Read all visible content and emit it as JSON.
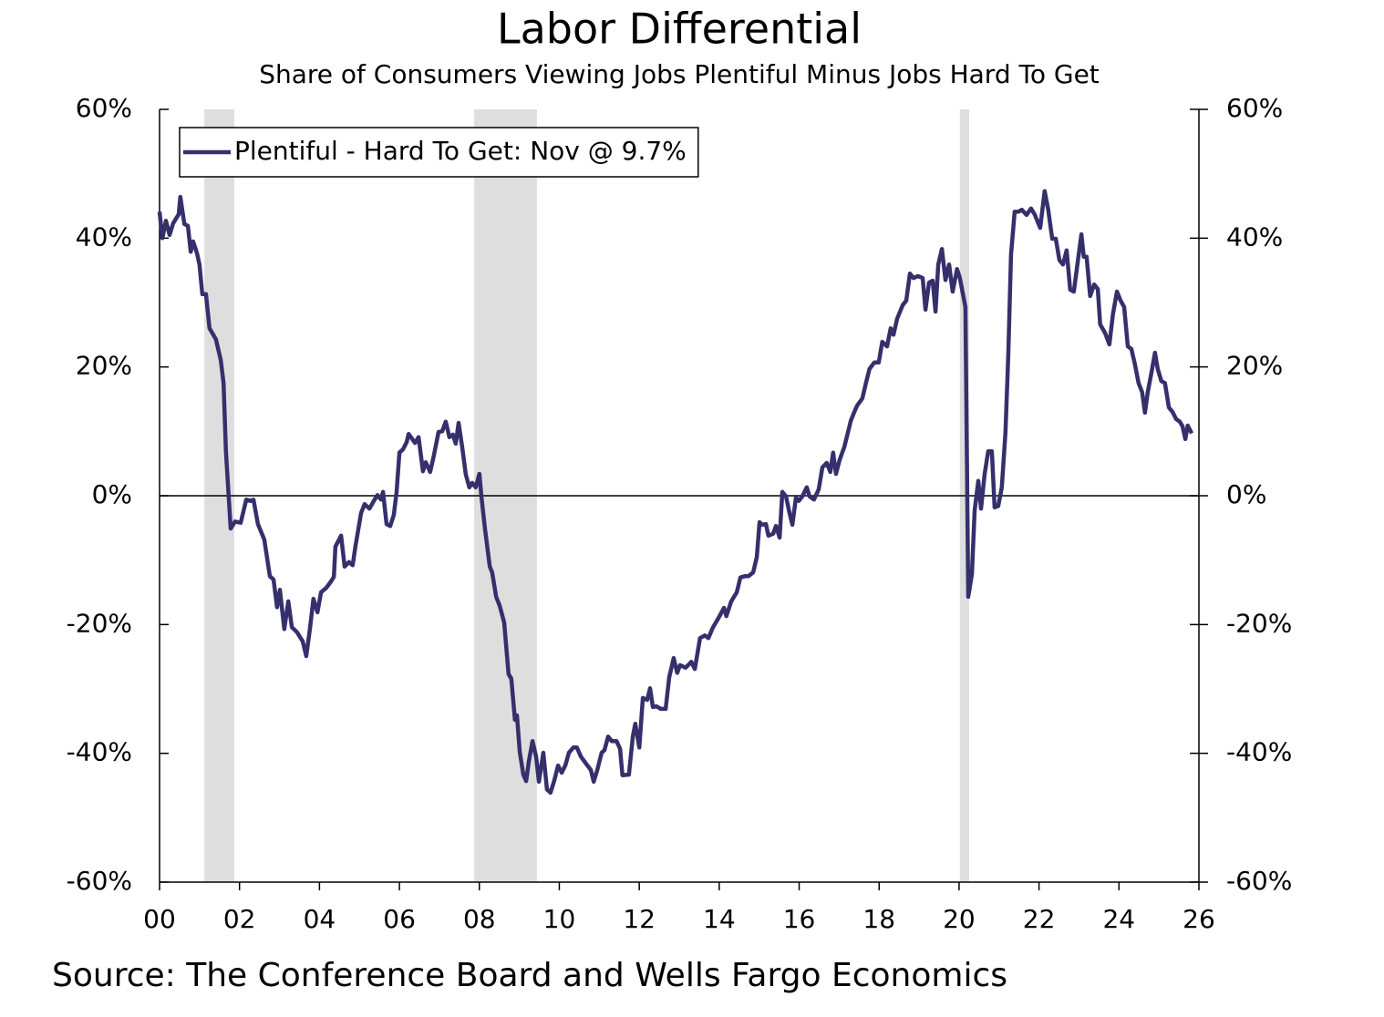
{
  "chart_data": {
    "type": "line",
    "title": "Labor Differential",
    "subtitle": "Share of Consumers Viewing Jobs Plentiful Minus Jobs Hard To Get",
    "source": "Source: The Conference Board and Wells Fargo Economics",
    "xlim": [
      2000,
      2026
    ],
    "xticks": [
      {
        "value": 2000,
        "label": "00"
      },
      {
        "value": 2002,
        "label": "02"
      },
      {
        "value": 2004,
        "label": "04"
      },
      {
        "value": 2006,
        "label": "06"
      },
      {
        "value": 2008,
        "label": "08"
      },
      {
        "value": 2010,
        "label": "10"
      },
      {
        "value": 2012,
        "label": "12"
      },
      {
        "value": 2014,
        "label": "14"
      },
      {
        "value": 2016,
        "label": "16"
      },
      {
        "value": 2018,
        "label": "18"
      },
      {
        "value": 2020,
        "label": "20"
      },
      {
        "value": 2022,
        "label": "22"
      },
      {
        "value": 2024,
        "label": "24"
      },
      {
        "value": 2026,
        "label": "26"
      }
    ],
    "ylim": [
      -60,
      60
    ],
    "yticks": [
      {
        "value": 60,
        "label": "60%"
      },
      {
        "value": 40,
        "label": "40%"
      },
      {
        "value": 20,
        "label": "20%"
      },
      {
        "value": 0,
        "label": "0%"
      },
      {
        "value": -20,
        "label": "-20%"
      },
      {
        "value": -40,
        "label": "-40%"
      },
      {
        "value": -60,
        "label": "-60%"
      }
    ],
    "shaded_periods": [
      [
        2001.12,
        2001.87
      ],
      [
        2007.87,
        2009.44
      ],
      [
        2020.02,
        2020.25
      ]
    ],
    "shade_color": "#dedede",
    "legend": "upper left",
    "series": [
      {
        "name": "Plentiful - Hard To Get: Nov @ 9.7%",
        "color": "#35306b",
        "x": [
          2000.0,
          2000.07,
          2000.16,
          2000.25,
          2000.34,
          2000.48,
          2000.52,
          2000.62,
          2000.71,
          2000.78,
          2000.84,
          2000.94,
          2001.0,
          2001.07,
          2001.16,
          2001.25,
          2001.41,
          2001.53,
          2001.6,
          2001.66,
          2001.78,
          2001.89,
          2002.03,
          2002.17,
          2002.28,
          2002.35,
          2002.46,
          2002.62,
          2002.76,
          2002.85,
          2002.94,
          2003.01,
          2003.12,
          2003.22,
          2003.31,
          2003.44,
          2003.58,
          2003.67,
          2003.76,
          2003.85,
          2003.95,
          2004.04,
          2004.17,
          2004.29,
          2004.36,
          2004.4,
          2004.54,
          2004.63,
          2004.74,
          2004.83,
          2004.9,
          2005.04,
          2005.13,
          2005.25,
          2005.36,
          2005.45,
          2005.54,
          2005.59,
          2005.68,
          2005.77,
          2005.86,
          2005.93,
          2006.0,
          2006.09,
          2006.18,
          2006.23,
          2006.39,
          2006.48,
          2006.59,
          2006.66,
          2006.77,
          2006.86,
          2006.98,
          2007.07,
          2007.16,
          2007.25,
          2007.34,
          2007.41,
          2007.48,
          2007.57,
          2007.66,
          2007.75,
          2007.82,
          2007.91,
          2008.0,
          2008.05,
          2008.14,
          2008.26,
          2008.32,
          2008.42,
          2008.51,
          2008.62,
          2008.73,
          2008.8,
          2008.89,
          2008.94,
          2009.01,
          2009.1,
          2009.17,
          2009.24,
          2009.33,
          2009.42,
          2009.49,
          2009.6,
          2009.69,
          2009.78,
          2009.87,
          2009.97,
          2010.06,
          2010.15,
          2010.24,
          2010.35,
          2010.44,
          2010.54,
          2010.67,
          2010.79,
          2010.86,
          2010.95,
          2011.06,
          2011.13,
          2011.22,
          2011.31,
          2011.43,
          2011.52,
          2011.58,
          2011.74,
          2011.84,
          2011.9,
          2012.0,
          2012.09,
          2012.2,
          2012.27,
          2012.34,
          2012.43,
          2012.54,
          2012.66,
          2012.75,
          2012.86,
          2012.95,
          2013.02,
          2013.16,
          2013.3,
          2013.39,
          2013.52,
          2013.64,
          2013.73,
          2013.84,
          2013.98,
          2014.12,
          2014.18,
          2014.3,
          2014.44,
          2014.53,
          2014.64,
          2014.73,
          2014.85,
          2014.94,
          2015.01,
          2015.07,
          2015.17,
          2015.23,
          2015.35,
          2015.42,
          2015.51,
          2015.58,
          2015.67,
          2015.76,
          2015.83,
          2015.92,
          2015.99,
          2016.08,
          2016.19,
          2016.26,
          2016.37,
          2016.49,
          2016.58,
          2016.69,
          2016.78,
          2016.85,
          2016.92,
          2017.01,
          2017.13,
          2017.22,
          2017.29,
          2017.38,
          2017.45,
          2017.58,
          2017.67,
          2017.76,
          2017.88,
          2017.99,
          2018.08,
          2018.2,
          2018.29,
          2018.36,
          2018.45,
          2018.59,
          2018.68,
          2018.77,
          2018.86,
          2018.97,
          2019.09,
          2019.16,
          2019.25,
          2019.34,
          2019.41,
          2019.48,
          2019.57,
          2019.66,
          2019.75,
          2019.84,
          2019.95,
          2020.02,
          2020.16,
          2020.23,
          2020.32,
          2020.39,
          2020.48,
          2020.55,
          2020.64,
          2020.73,
          2020.82,
          2020.89,
          2020.98,
          2021.07,
          2021.16,
          2021.23,
          2021.3,
          2021.39,
          2021.48,
          2021.57,
          2021.69,
          2021.8,
          2021.89,
          2022.03,
          2022.14,
          2022.23,
          2022.33,
          2022.42,
          2022.51,
          2022.6,
          2022.69,
          2022.78,
          2022.87,
          2022.96,
          2023.06,
          2023.12,
          2023.19,
          2023.28,
          2023.38,
          2023.47,
          2023.53,
          2023.65,
          2023.76,
          2023.85,
          2023.95,
          2024.04,
          2024.13,
          2024.22,
          2024.31,
          2024.4,
          2024.49,
          2024.58,
          2024.65,
          2024.72,
          2024.81,
          2024.9,
          2024.97,
          2025.06,
          2025.15,
          2025.25,
          2025.34,
          2025.43,
          2025.52,
          2025.59,
          2025.66,
          2025.72,
          2025.82
        ],
        "values": [
          44.1,
          40.0,
          42.7,
          40.5,
          42.3,
          43.7,
          46.4,
          42.2,
          41.9,
          37.9,
          39.5,
          37.6,
          35.9,
          31.3,
          31.3,
          26.0,
          24.3,
          21.1,
          17.5,
          6.9,
          -5.1,
          -4.0,
          -4.2,
          -0.6,
          -0.8,
          -0.6,
          -4.4,
          -6.8,
          -12.5,
          -13.0,
          -17.3,
          -14.6,
          -20.7,
          -16.4,
          -20.4,
          -21.2,
          -22.6,
          -24.9,
          -20.7,
          -16.0,
          -18.1,
          -15.0,
          -14.3,
          -13.3,
          -12.6,
          -7.9,
          -6.2,
          -11.0,
          -10.3,
          -10.8,
          -7.9,
          -2.7,
          -1.3,
          -2.0,
          -0.8,
          0.1,
          -0.6,
          0.6,
          -4.4,
          -4.7,
          -3.0,
          0.6,
          6.7,
          7.2,
          8.3,
          9.6,
          8.2,
          9.1,
          3.8,
          5.2,
          3.7,
          6.2,
          9.9,
          10.0,
          11.5,
          9.1,
          9.5,
          8.1,
          11.3,
          7.6,
          3.3,
          1.3,
          2.0,
          1.3,
          3.4,
          -0.1,
          -5.1,
          -11.0,
          -11.9,
          -15.7,
          -17.1,
          -19.7,
          -27.7,
          -28.4,
          -34.8,
          -34.1,
          -39.8,
          -43.3,
          -44.3,
          -41.2,
          -38.1,
          -40.5,
          -44.4,
          -39.9,
          -45.6,
          -46.1,
          -44.3,
          -41.9,
          -43.0,
          -41.9,
          -39.9,
          -39.1,
          -39.1,
          -40.5,
          -41.6,
          -42.6,
          -44.4,
          -42.6,
          -39.9,
          -39.5,
          -37.4,
          -38.1,
          -38.1,
          -39.3,
          -43.4,
          -43.3,
          -37.4,
          -35.4,
          -39.1,
          -31.4,
          -31.7,
          -29.9,
          -32.8,
          -32.7,
          -33.1,
          -33.1,
          -28.2,
          -25.2,
          -27.5,
          -26.3,
          -26.7,
          -25.8,
          -26.9,
          -22.1,
          -21.7,
          -22.1,
          -20.5,
          -19.0,
          -17.4,
          -18.7,
          -16.4,
          -15.0,
          -12.7,
          -12.5,
          -12.5,
          -11.9,
          -9.5,
          -4.1,
          -4.5,
          -4.4,
          -6.2,
          -5.9,
          -4.7,
          -6.5,
          0.6,
          -0.1,
          -2.7,
          -4.5,
          -0.3,
          -0.8,
          -0.1,
          1.3,
          -0.1,
          -0.6,
          1.0,
          4.4,
          5.1,
          3.7,
          6.7,
          3.4,
          5.5,
          7.6,
          9.8,
          11.6,
          13.0,
          14.0,
          15.1,
          17.5,
          19.7,
          20.7,
          20.7,
          23.9,
          23.2,
          26.0,
          25.0,
          27.5,
          29.6,
          30.3,
          34.5,
          33.8,
          34.1,
          33.8,
          28.9,
          33.1,
          33.4,
          28.6,
          35.9,
          38.3,
          33.5,
          35.9,
          31.7,
          35.2,
          33.8,
          29.3,
          -15.7,
          -12.2,
          -2.3,
          2.3,
          -2.0,
          3.4,
          6.9,
          6.9,
          -1.8,
          -1.6,
          1.3,
          9.8,
          21.8,
          37.4,
          44.1,
          44.1,
          44.4,
          43.6,
          44.6,
          43.7,
          41.6,
          47.3,
          44.4,
          39.9,
          39.9,
          36.6,
          35.9,
          38.1,
          32.0,
          31.7,
          35.9,
          40.6,
          37.1,
          37.1,
          31.0,
          32.8,
          32.1,
          26.6,
          25.3,
          23.5,
          28.2,
          31.7,
          30.3,
          29.3,
          23.2,
          22.8,
          20.4,
          17.5,
          16.1,
          12.9,
          16.1,
          19.0,
          22.2,
          19.7,
          17.8,
          17.5,
          13.7,
          13.0,
          11.9,
          11.5,
          10.8,
          8.8,
          10.9,
          9.7
        ]
      }
    ]
  }
}
